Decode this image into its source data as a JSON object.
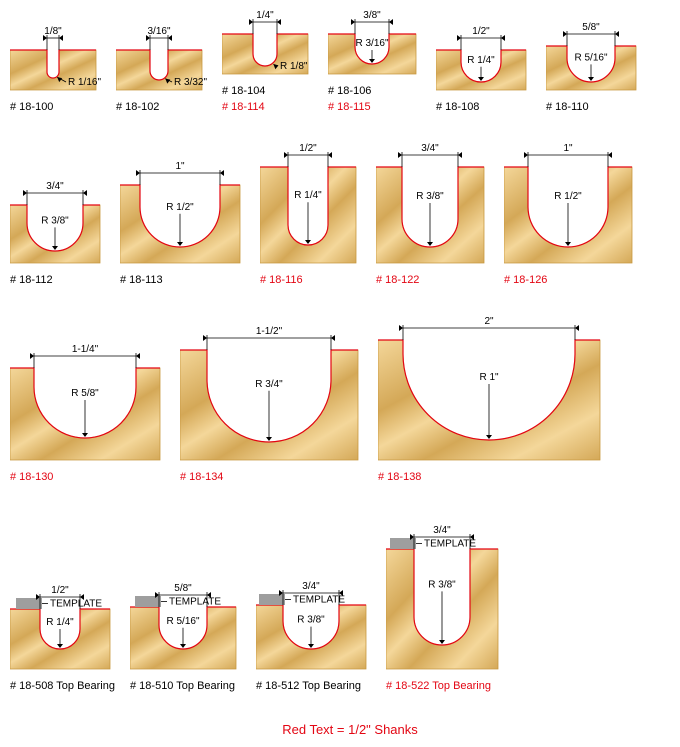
{
  "colors": {
    "wood_light": "#f4d79a",
    "wood_dark": "#d4a857",
    "cut_line": "#e30613",
    "border": "#c89840",
    "text_red": "#e30613"
  },
  "footer": "Red Text = 1/2\" Shanks",
  "row1": [
    {
      "part": "# 18-100",
      "width_label": "1/8\"",
      "radius_label": "R 1/16\"",
      "opening": 12,
      "depth": 28,
      "block_w": 86,
      "block_h": 40,
      "alt": ""
    },
    {
      "part": "# 18-102",
      "width_label": "3/16\"",
      "radius_label": "R 3/32\"",
      "opening": 18,
      "depth": 30,
      "block_w": 86,
      "block_h": 40,
      "alt": ""
    },
    {
      "part": "# 18-104",
      "width_label": "1/4\"",
      "radius_label": "R 1/8\"",
      "opening": 24,
      "depth": 32,
      "block_w": 86,
      "block_h": 40,
      "alt": "# 18-114"
    },
    {
      "part": "# 18-106",
      "width_label": "3/8\"",
      "radius_label": "R 3/16\"",
      "opening": 34,
      "depth": 30,
      "block_w": 88,
      "block_h": 40,
      "alt": "# 18-115"
    },
    {
      "part": "# 18-108",
      "width_label": "1/2\"",
      "radius_label": "R 1/4\"",
      "opening": 40,
      "depth": 32,
      "block_w": 90,
      "block_h": 40,
      "alt": ""
    },
    {
      "part": "# 18-110",
      "width_label": "5/8\"",
      "radius_label": "R 5/16\"",
      "opening": 48,
      "depth": 36,
      "block_w": 90,
      "block_h": 44,
      "alt": ""
    }
  ],
  "row2": [
    {
      "part": "# 18-112",
      "width_label": "3/4\"",
      "radius_label": "R 3/8\"",
      "opening": 56,
      "depth": 46,
      "block_w": 90,
      "block_h": 58,
      "red": false
    },
    {
      "part": "# 18-113",
      "width_label": "1\"",
      "radius_label": "R 1/2\"",
      "opening": 80,
      "depth": 62,
      "block_w": 120,
      "block_h": 78,
      "red": false
    },
    {
      "part": "# 18-116",
      "width_label": "1/2\"",
      "radius_label": "R 1/4\"",
      "opening": 40,
      "depth": 78,
      "block_w": 96,
      "block_h": 96,
      "red": true
    },
    {
      "part": "# 18-122",
      "width_label": "3/4\"",
      "radius_label": "R 3/8\"",
      "opening": 56,
      "depth": 80,
      "block_w": 108,
      "block_h": 96,
      "red": true
    },
    {
      "part": "# 18-126",
      "width_label": "1\"",
      "radius_label": "R 1/2\"",
      "opening": 80,
      "depth": 80,
      "block_w": 128,
      "block_h": 96,
      "red": true
    }
  ],
  "row3": [
    {
      "part": "# 18-130",
      "width_label": "1-1/4\"",
      "radius_label": "R 5/8\"",
      "opening": 102,
      "depth": 70,
      "block_w": 150,
      "block_h": 92,
      "red": true
    },
    {
      "part": "# 18-134",
      "width_label": "1-1/2\"",
      "radius_label": "R 3/4\"",
      "opening": 124,
      "depth": 92,
      "block_w": 178,
      "block_h": 110,
      "red": true
    },
    {
      "part": "# 18-138",
      "width_label": "2\"",
      "radius_label": "R 1\"",
      "opening": 172,
      "depth": 100,
      "block_w": 222,
      "block_h": 120,
      "red": true
    }
  ],
  "row4": [
    {
      "part": "# 18-508 Top Bearing",
      "width_label": "1/2\"",
      "radius_label": "R 1/4\"",
      "opening": 40,
      "depth": 40,
      "block_w": 100,
      "block_h": 60,
      "red": false,
      "template": true,
      "template_label": "TEMPLATE"
    },
    {
      "part": "# 18-510 Top Bearing",
      "width_label": "5/8\"",
      "radius_label": "R 5/16\"",
      "opening": 48,
      "depth": 42,
      "block_w": 106,
      "block_h": 62,
      "red": false,
      "template": true,
      "template_label": "TEMPLATE"
    },
    {
      "part": "# 18-512 Top Bearing",
      "width_label": "3/4\"",
      "radius_label": "R 3/8\"",
      "opening": 56,
      "depth": 44,
      "block_w": 110,
      "block_h": 64,
      "red": false,
      "template": true,
      "template_label": "TEMPLATE"
    },
    {
      "part": "# 18-522 Top Bearing",
      "width_label": "3/4\"",
      "radius_label": "R 3/8\"",
      "opening": 56,
      "depth": 96,
      "block_w": 112,
      "block_h": 120,
      "red": true,
      "template": true,
      "template_label": "TEMPLATE"
    }
  ]
}
